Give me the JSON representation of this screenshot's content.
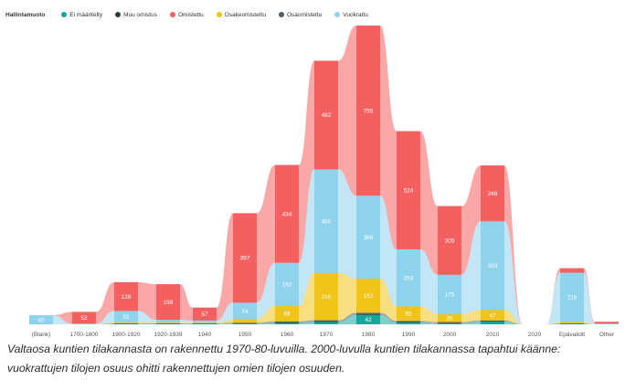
{
  "legend": {
    "title": "Hallintamuoto",
    "items": [
      {
        "label": "Ei määritelty",
        "color": "#14a89c"
      },
      {
        "label": "Muu omistus",
        "color": "#2f3d3b"
      },
      {
        "label": "Omistettu",
        "color": "#f4605f"
      },
      {
        "label": "Osakeomistettu",
        "color": "#f0c419"
      },
      {
        "label": "Osaomistettu",
        "color": "#555f66"
      },
      {
        "label": "Vuokrattu",
        "color": "#8fd2ec"
      }
    ]
  },
  "caption": {
    "line1": "Valtaosa kuntien tilakannasta on rakennettu 1970-80-luvuilla. 2000-luvulla kuntien tilakannassa tapahtui käänne:",
    "line2": "vuokrattujen tilojen osuus ohitti rakennettujen omien tilojen osuuden."
  },
  "chart_data": {
    "type": "area",
    "subtype": "ribbon",
    "categories": [
      "(Blank)",
      "1700-1800",
      "1900-1920",
      "1920-1939",
      "1940",
      "1950",
      "1960",
      "1970",
      "1980",
      "1990",
      "2000",
      "2010",
      "2020",
      "Epävalidit",
      "Other"
    ],
    "series": [
      {
        "name": "Ei määritelty",
        "color": "#14a89c",
        "values": [
          0,
          0,
          1,
          1,
          1,
          3,
          6,
          10,
          42,
          8,
          5,
          12,
          0,
          2,
          0
        ]
      },
      {
        "name": "Muu omistus",
        "color": "#2f3d3b",
        "values": [
          0,
          0,
          1,
          1,
          1,
          1,
          2,
          2,
          3,
          2,
          1,
          2,
          0,
          1,
          0
        ]
      },
      {
        "name": "Osaomistettu",
        "color": "#555f66",
        "values": [
          0,
          0,
          2,
          2,
          2,
          3,
          5,
          6,
          6,
          5,
          4,
          3,
          0,
          2,
          0
        ]
      },
      {
        "name": "Osakeomistettu",
        "color": "#f0c419",
        "values": [
          0,
          0,
          4,
          4,
          3,
          15,
          68,
          210,
          152,
          65,
          35,
          47,
          0,
          6,
          0
        ]
      },
      {
        "name": "Vuokrattu",
        "color": "#8fd2ec",
        "values": [
          40,
          3,
          51,
          12,
          10,
          74,
          192,
          460,
          368,
          253,
          175,
          393,
          0,
          218,
          3
        ]
      },
      {
        "name": "Omistettu",
        "color": "#f4605f",
        "values": [
          0,
          52,
          128,
          158,
          57,
          397,
          434,
          482,
          755,
          524,
          305,
          248,
          0,
          20,
          8
        ]
      }
    ],
    "value_labels": [
      {
        "series": "Vuokrattu",
        "category": "(Blank)",
        "text": "40"
      },
      {
        "series": "Omistettu",
        "category": "1700-1800",
        "text": "52"
      },
      {
        "series": "Omistettu",
        "category": "1900-1920",
        "text": "128"
      },
      {
        "series": "Vuokrattu",
        "category": "1900-1920",
        "text": "51"
      },
      {
        "series": "Omistettu",
        "category": "1920-1939",
        "text": "158"
      },
      {
        "series": "Omistettu",
        "category": "1940",
        "text": "57"
      },
      {
        "series": "Omistettu",
        "category": "1950",
        "text": "397"
      },
      {
        "series": "Vuokrattu",
        "category": "1950",
        "text": "74"
      },
      {
        "series": "Omistettu",
        "category": "1960",
        "text": "434"
      },
      {
        "series": "Vuokrattu",
        "category": "1960",
        "text": "192"
      },
      {
        "series": "Osakeomistettu",
        "category": "1960",
        "text": "68"
      },
      {
        "series": "Omistettu",
        "category": "1970",
        "text": "482"
      },
      {
        "series": "Vuokrattu",
        "category": "1970",
        "text": "460"
      },
      {
        "series": "Osakeomistettu",
        "category": "1970",
        "text": "210"
      },
      {
        "series": "Omistettu",
        "category": "1980",
        "text": "755"
      },
      {
        "series": "Vuokrattu",
        "category": "1980",
        "text": "368"
      },
      {
        "series": "Osakeomistettu",
        "category": "1980",
        "text": "152"
      },
      {
        "series": "Ei määritelty",
        "category": "1980",
        "text": "42"
      },
      {
        "series": "Omistettu",
        "category": "1990",
        "text": "524"
      },
      {
        "series": "Vuokrattu",
        "category": "1990",
        "text": "253"
      },
      {
        "series": "Osakeomistettu",
        "category": "1990",
        "text": "65"
      },
      {
        "series": "Omistettu",
        "category": "2000",
        "text": "305"
      },
      {
        "series": "Vuokrattu",
        "category": "2000",
        "text": "175"
      },
      {
        "series": "Osakeomistettu",
        "category": "2000",
        "text": "35"
      },
      {
        "series": "Vuokrattu",
        "category": "2010",
        "text": "393"
      },
      {
        "series": "Omistettu",
        "category": "2010",
        "text": "248"
      },
      {
        "series": "Osakeomistettu",
        "category": "2010",
        "text": "47"
      },
      {
        "series": "Vuokrattu",
        "category": "Epävalidit",
        "text": "218"
      }
    ],
    "xlabel": "",
    "ylabel": "",
    "legend_position": "top-left",
    "grid": false
  }
}
